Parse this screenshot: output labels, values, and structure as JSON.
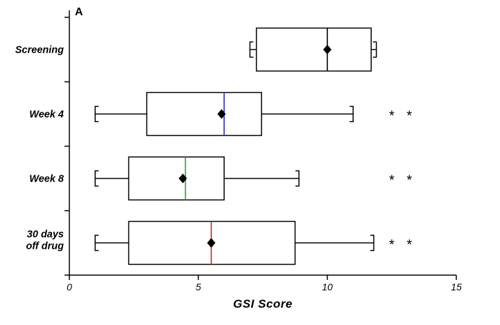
{
  "panel_label": "A",
  "chart_data": {
    "type": "boxplot",
    "orientation": "horizontal",
    "title": "",
    "xlabel": "GSI Score",
    "ylabel": "",
    "xlim": [
      0,
      15
    ],
    "xticks": [
      0,
      5,
      10,
      15
    ],
    "xtick_labels": [
      "0",
      "5",
      "10",
      "15"
    ],
    "grid": false,
    "significance_marker": "* *",
    "categories": [
      "Screening",
      "Week 4",
      "Week 8",
      "30 days off drug"
    ],
    "series": [
      {
        "name": "Screening",
        "label_lines": [
          "Screening"
        ],
        "whisker_low": 7.0,
        "q1": 7.25,
        "median": 10.0,
        "q3": 11.7,
        "whisker_high": 11.9,
        "mean": 10.0,
        "median_color": "#000000",
        "significant": false
      },
      {
        "name": "Week 4",
        "label_lines": [
          "Week 4"
        ],
        "whisker_low": 1.0,
        "q1": 3.0,
        "median": 6.0,
        "q3": 7.45,
        "whisker_high": 11.0,
        "mean": 5.9,
        "median_color": "#2c2cc4",
        "significant": true
      },
      {
        "name": "Week 8",
        "label_lines": [
          "Week 8"
        ],
        "whisker_low": 1.0,
        "q1": 2.3,
        "median": 4.5,
        "q3": 6.0,
        "whisker_high": 8.9,
        "mean": 4.4,
        "median_color": "#1ea51e",
        "significant": true
      },
      {
        "name": "30 days off drug",
        "label_lines": [
          "30 days",
          "off drug"
        ],
        "whisker_low": 1.0,
        "q1": 2.3,
        "median": 5.5,
        "q3": 8.75,
        "whisker_high": 11.8,
        "mean": 5.5,
        "median_color": "#cc2222",
        "significant": true
      }
    ],
    "axis_color": "#000000",
    "box_fill": "#ffffff",
    "box_stroke": "#000000",
    "mean_marker": "diamond",
    "mean_marker_color": "#000000"
  }
}
